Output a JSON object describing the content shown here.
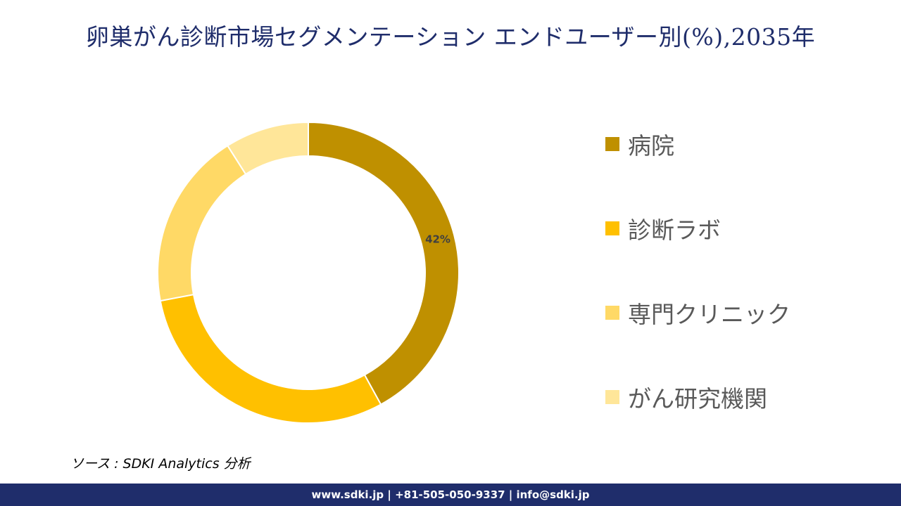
{
  "title": "卵巣がん診断市場セグメンテーション エンドユーザー別(%),2035年",
  "source": "ソース : SDKI Analytics 分析",
  "footer": "www.sdki.jp | +81-505-050-9337 | info@sdki.jp",
  "chart_data": {
    "type": "pie",
    "variant": "donut",
    "categories": [
      "病院",
      "診断ラボ",
      "専門クリニック",
      "がん研究機関"
    ],
    "values": [
      42,
      30,
      19,
      9
    ],
    "colors": [
      "#bf9000",
      "#ffc000",
      "#ffd966",
      "#ffe699"
    ],
    "data_labels": [
      "42%",
      "",
      "",
      ""
    ],
    "legend_position": "right"
  }
}
